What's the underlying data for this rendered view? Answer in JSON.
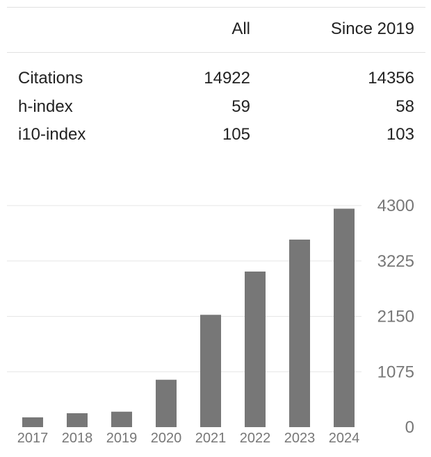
{
  "table": {
    "headers": [
      "",
      "All",
      "Since 2019"
    ],
    "rows": [
      {
        "label": "Citations",
        "all": "14922",
        "since": "14356"
      },
      {
        "label": "h-index",
        "all": "59",
        "since": "58"
      },
      {
        "label": "i10-index",
        "all": "105",
        "since": "103"
      }
    ]
  },
  "chart_data": {
    "type": "bar",
    "categories": [
      "2017",
      "2018",
      "2019",
      "2020",
      "2021",
      "2022",
      "2023",
      "2024"
    ],
    "values": [
      190,
      270,
      300,
      920,
      2180,
      3020,
      3640,
      4240
    ],
    "yticks": [
      0,
      1075,
      2150,
      3225,
      4300
    ],
    "ylim": [
      0,
      4300
    ],
    "grid": true,
    "colors": {
      "bar": "#777777",
      "grid": "#e6e6e6",
      "tick_text": "#777777"
    }
  }
}
